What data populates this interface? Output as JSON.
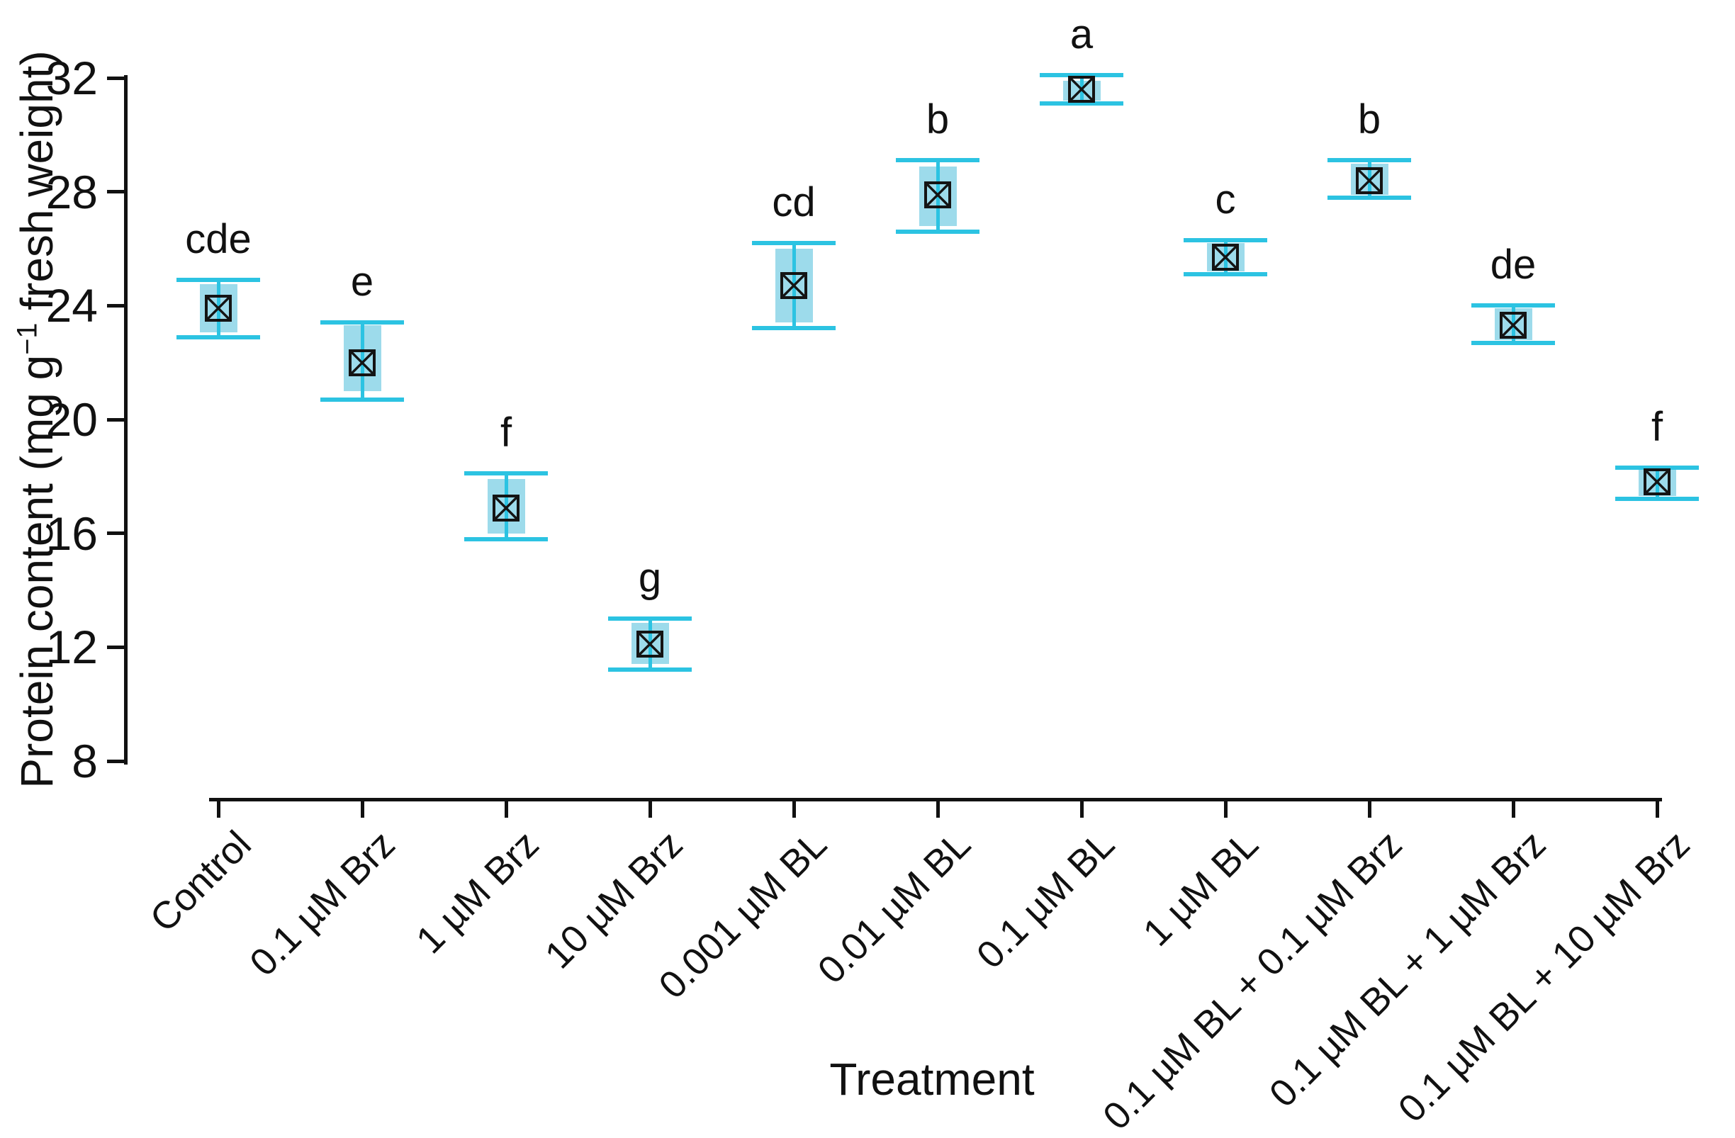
{
  "figure": {
    "background": "#ffffff"
  },
  "colors": {
    "band": "#9ddbeb",
    "error_bar": "#2cc3e2",
    "axis": "#111111",
    "marker_stroke": "#141414"
  },
  "chart_data": {
    "type": "scatter",
    "title": "",
    "xlabel": "Treatment",
    "ylabel": "Protein content (mg g⁻¹ fresh weight)",
    "ylabel_parts": {
      "pre": "Protein content (mg g",
      "sup": "−1",
      "post": " fresh weight)"
    },
    "ylim": [
      8,
      32
    ],
    "yticks": [
      32,
      28,
      24,
      20,
      16,
      12,
      8
    ],
    "grid": false,
    "legend": "none",
    "marker": "crossed-square",
    "series_description": "Mean protein content with shaded band and error bars capped with wide whiskers; letters above points denote significance groups",
    "points": [
      {
        "category": "Control",
        "letter": "cde",
        "mean": 23.9,
        "upper": 24.9,
        "lower": 22.9,
        "band_upper": 24.75,
        "band_lower": 23.05
      },
      {
        "category": "0.1 µM Brz",
        "letter": "e",
        "mean": 22.0,
        "upper": 23.4,
        "lower": 20.7,
        "band_upper": 23.3,
        "band_lower": 21.0
      },
      {
        "category": "1 µM Brz",
        "letter": "f",
        "mean": 16.9,
        "upper": 18.1,
        "lower": 15.8,
        "band_upper": 17.9,
        "band_lower": 16.0
      },
      {
        "category": "10 µM Brz",
        "letter": "g",
        "mean": 12.1,
        "upper": 13.0,
        "lower": 11.2,
        "band_upper": 12.85,
        "band_lower": 11.4
      },
      {
        "category": "0.001 µM BL",
        "letter": "cd",
        "mean": 24.7,
        "upper": 26.2,
        "lower": 23.2,
        "band_upper": 26.0,
        "band_lower": 23.4
      },
      {
        "category": "0.01 µM BL",
        "letter": "b",
        "mean": 27.9,
        "upper": 29.1,
        "lower": 26.6,
        "band_upper": 28.9,
        "band_lower": 26.8
      },
      {
        "category": "0.1 µM BL",
        "letter": "a",
        "mean": 31.6,
        "upper": 32.1,
        "lower": 31.1,
        "band_upper": 31.9,
        "band_lower": 31.2
      },
      {
        "category": "1 µM BL",
        "letter": "c",
        "mean": 25.7,
        "upper": 26.3,
        "lower": 25.1,
        "band_upper": 26.2,
        "band_lower": 25.2
      },
      {
        "category": "0.1 µM BL + 0.1 µM Brz",
        "letter": "b",
        "mean": 28.4,
        "upper": 29.1,
        "lower": 27.8,
        "band_upper": 29.0,
        "band_lower": 27.9
      },
      {
        "category": "0.1 µM BL + 1 µM Brz",
        "letter": "de",
        "mean": 23.3,
        "upper": 24.0,
        "lower": 22.7,
        "band_upper": 23.9,
        "band_lower": 22.8
      },
      {
        "category": "0.1 µM BL + 10 µM Brz",
        "letter": "f",
        "mean": 17.8,
        "upper": 18.3,
        "lower": 17.2,
        "band_upper": 18.25,
        "band_lower": 17.3
      }
    ]
  }
}
